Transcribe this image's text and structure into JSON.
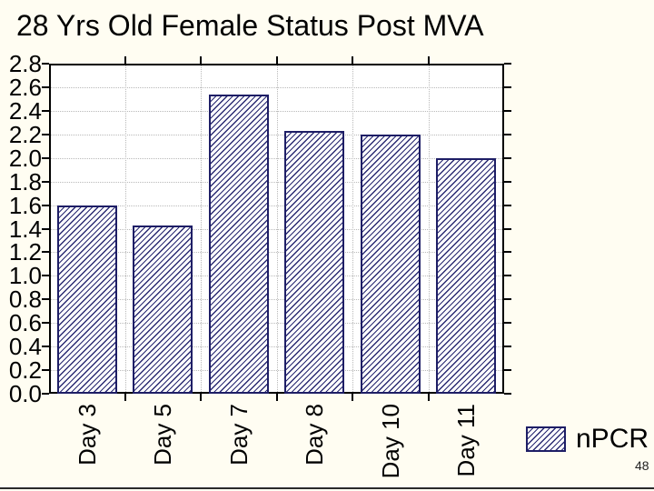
{
  "page_number": "48",
  "chart_data": {
    "type": "bar",
    "title": "28 Yrs Old Female Status Post MVA",
    "categories": [
      "Day 3",
      "Day 5",
      "Day 7",
      "Day 8",
      "Day 10",
      "Day 11"
    ],
    "series": [
      {
        "name": "nPCR",
        "values": [
          1.6,
          1.43,
          2.54,
          2.23,
          2.2,
          2.0
        ]
      }
    ],
    "xlabel": "",
    "ylabel": "",
    "ylim": [
      0,
      2.8
    ],
    "ytick_step": 0.2,
    "ytick_labels": [
      "0.0",
      "0.2",
      "0.4",
      "0.6",
      "0.8",
      "1.0",
      "1.2",
      "1.4",
      "1.6",
      "1.8",
      "2.0",
      "2.2",
      "2.4",
      "2.6",
      "2.8"
    ],
    "grid": {
      "horizontal": true,
      "vertical_at_category_boundaries": true,
      "style": "dotted",
      "ticks_on_all_sides": true
    },
    "legend": {
      "position": "bottom-right",
      "swatch_style": "diagonal-hatch"
    },
    "bar_style": {
      "fill": "#ffffff",
      "hatch_line_color": "#2a2a72",
      "border_color": "#1e1e66",
      "hatch_direction": "forward-diagonal"
    },
    "colors": {
      "background": "#fffdf2",
      "plot_background": "#ffffff",
      "axis": "#000000",
      "grid": "#b9b9b9",
      "text": "#000000"
    }
  }
}
